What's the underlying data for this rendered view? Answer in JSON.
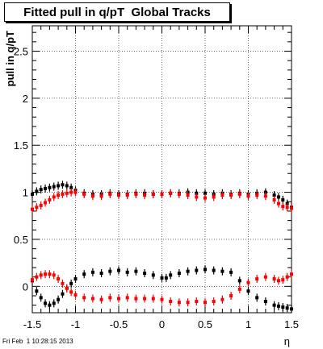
{
  "title": "Fitted pull in q/pT  Global Tracks",
  "footer": "Fri Feb  1 10:28:15 2013",
  "chart_data": {
    "type": "scatter",
    "xlabel": "η",
    "ylabel": "pull in q/pT",
    "xlim": [
      -1.5,
      1.5
    ],
    "ylim": [
      -0.28,
      2.77
    ],
    "x_ticks": [
      "-1.5",
      "-1",
      "-0.5",
      "0",
      "0.5",
      "1",
      "1.5"
    ],
    "x_tick_values": [
      -1.5,
      -1,
      -0.5,
      0,
      0.5,
      1,
      1.5
    ],
    "y_ticks": [
      "0",
      "0.5",
      "1",
      "1.5",
      "2",
      "2.5"
    ],
    "y_tick_values": [
      0,
      0.5,
      1,
      1.5,
      2,
      2.5
    ],
    "grid": true,
    "marker_size": 4,
    "series": [
      {
        "color": "#000000",
        "x": [
          -1.5,
          -1.45,
          -1.4,
          -1.35,
          -1.3,
          -1.25,
          -1.2,
          -1.15,
          -1.1,
          -1.05,
          -1.0,
          -0.9,
          -0.8,
          -0.7,
          -0.6,
          -0.5,
          -0.4,
          -0.3,
          -0.2,
          -0.1,
          0.0,
          0.1,
          0.2,
          0.3,
          0.4,
          0.5,
          0.6,
          0.7,
          0.8,
          0.9,
          1.0,
          1.1,
          1.2,
          1.3,
          1.35,
          1.4,
          1.45,
          1.5
        ],
        "y": [
          0.98,
          1.01,
          1.03,
          1.04,
          1.05,
          1.06,
          1.07,
          1.08,
          1.07,
          1.05,
          1.02,
          0.99,
          0.98,
          0.98,
          0.99,
          0.98,
          0.98,
          0.99,
          0.99,
          0.98,
          0.98,
          0.99,
          0.99,
          1.0,
          0.99,
          0.99,
          0.98,
          0.99,
          0.98,
          0.99,
          0.98,
          0.99,
          1.0,
          0.97,
          0.95,
          0.92,
          0.88,
          0.84
        ]
      },
      {
        "color": "#000000",
        "x": [
          -1.5,
          -1.45,
          -1.4,
          -1.35,
          -1.3,
          -1.25,
          -1.2,
          -1.15,
          -1.1,
          -1.05,
          -1.0,
          -0.9,
          -0.8,
          -0.7,
          -0.6,
          -0.5,
          -0.4,
          -0.3,
          -0.2,
          -0.1,
          0.0,
          0.05,
          0.1,
          0.2,
          0.3,
          0.4,
          0.5,
          0.6,
          0.7,
          0.8,
          0.9,
          1.0,
          1.1,
          1.2,
          1.3,
          1.35,
          1.4,
          1.45,
          1.5
        ],
        "y": [
          0.06,
          -0.05,
          -0.12,
          -0.18,
          -0.2,
          -0.18,
          -0.14,
          -0.08,
          -0.02,
          0.03,
          0.08,
          0.13,
          0.15,
          0.14,
          0.16,
          0.17,
          0.15,
          0.16,
          0.14,
          0.12,
          0.09,
          0.09,
          0.12,
          0.14,
          0.16,
          0.17,
          0.18,
          0.17,
          0.16,
          0.15,
          0.06,
          -0.05,
          -0.12,
          -0.16,
          -0.2,
          -0.21,
          -0.22,
          -0.23,
          -0.24
        ]
      },
      {
        "color": "#ff0000",
        "x": [
          -1.5,
          -1.45,
          -1.4,
          -1.35,
          -1.3,
          -1.25,
          -1.2,
          -1.15,
          -1.1,
          -1.05,
          -1.0,
          -0.9,
          -0.8,
          -0.7,
          -0.6,
          -0.5,
          -0.4,
          -0.3,
          -0.2,
          -0.1,
          0.0,
          0.1,
          0.2,
          0.3,
          0.4,
          0.5,
          0.6,
          0.7,
          0.8,
          0.9,
          1.0,
          1.1,
          1.2,
          1.3,
          1.35,
          1.4,
          1.45,
          1.5
        ],
        "y": [
          0.82,
          0.84,
          0.86,
          0.89,
          0.92,
          0.95,
          0.97,
          0.98,
          0.99,
          1.0,
          1.0,
          0.98,
          0.96,
          0.96,
          0.98,
          0.97,
          0.97,
          0.98,
          0.97,
          0.98,
          0.98,
          0.99,
          0.98,
          0.97,
          0.95,
          0.94,
          0.95,
          0.97,
          0.97,
          0.98,
          0.96,
          0.97,
          0.96,
          0.92,
          0.88,
          0.85,
          0.84,
          0.83
        ]
      },
      {
        "color": "#ff0000",
        "x": [
          -1.5,
          -1.45,
          -1.4,
          -1.35,
          -1.3,
          -1.25,
          -1.2,
          -1.15,
          -1.1,
          -1.05,
          -1.0,
          -0.9,
          -0.8,
          -0.7,
          -0.6,
          -0.5,
          -0.4,
          -0.3,
          -0.2,
          -0.1,
          0.0,
          0.1,
          0.2,
          0.3,
          0.4,
          0.5,
          0.6,
          0.7,
          0.8,
          0.9,
          1.0,
          1.1,
          1.2,
          1.3,
          1.35,
          1.4,
          1.45,
          1.5
        ],
        "y": [
          0.07,
          0.1,
          0.12,
          0.13,
          0.13,
          0.12,
          0.08,
          0.03,
          -0.02,
          -0.06,
          -0.09,
          -0.12,
          -0.13,
          -0.14,
          -0.12,
          -0.13,
          -0.12,
          -0.13,
          -0.13,
          -0.13,
          -0.14,
          -0.16,
          -0.17,
          -0.17,
          -0.16,
          -0.17,
          -0.16,
          -0.14,
          -0.1,
          -0.03,
          0.04,
          0.08,
          0.1,
          0.08,
          0.06,
          0.07,
          0.1,
          0.13
        ]
      }
    ]
  }
}
